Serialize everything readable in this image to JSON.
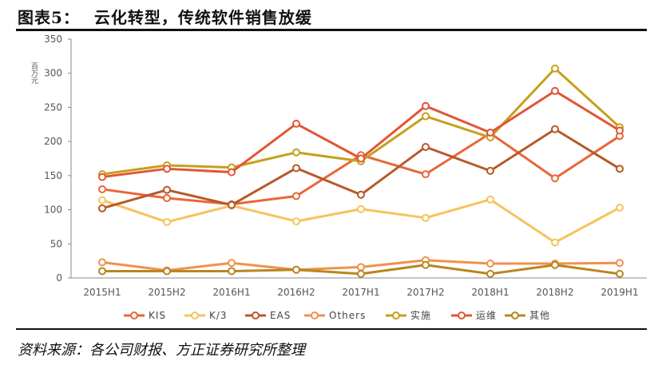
{
  "figure": {
    "label": "图表5：",
    "title": "云化转型，传统软件销售放缓",
    "source": "资料来源：各公司财报、方正证券研究所整理"
  },
  "chart_data": {
    "type": "line",
    "ylabel": "百万元",
    "ylim": [
      0,
      350
    ],
    "yticks": [
      0,
      50,
      100,
      150,
      200,
      250,
      300,
      350
    ],
    "categories": [
      "2015H1",
      "2015H2",
      "2016H1",
      "2016H2",
      "2017H1",
      "2017H2",
      "2018H1",
      "2018H2",
      "2019H1"
    ],
    "grid": false,
    "legend_position": "bottom",
    "series": [
      {
        "name": "KIS",
        "color": "#e8673a",
        "values": [
          130,
          117,
          108,
          120,
          180,
          152,
          212,
          146,
          208
        ]
      },
      {
        "name": "K/3",
        "color": "#f6c35c",
        "values": [
          114,
          82,
          106,
          83,
          101,
          88,
          115,
          52,
          103
        ]
      },
      {
        "name": "EAS",
        "color": "#b8582a",
        "values": [
          102,
          129,
          107,
          161,
          122,
          192,
          157,
          218,
          160
        ]
      },
      {
        "name": "Others",
        "color": "#f0914c",
        "values": [
          23,
          11,
          22,
          12,
          16,
          26,
          21,
          21,
          22
        ]
      },
      {
        "name": "实施",
        "color": "#c6a01c",
        "values": [
          152,
          165,
          162,
          184,
          171,
          237,
          206,
          307,
          221
        ]
      },
      {
        "name": "运维",
        "color": "#e25535",
        "values": [
          148,
          160,
          155,
          226,
          175,
          252,
          213,
          274,
          216
        ]
      },
      {
        "name": "其他",
        "color": "#b98620",
        "values": [
          10,
          10,
          10,
          12,
          6,
          19,
          6,
          19,
          6
        ]
      }
    ]
  }
}
